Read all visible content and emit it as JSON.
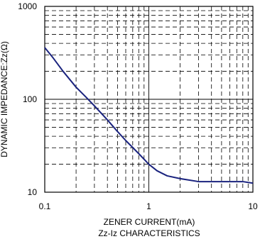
{
  "chart_data": {
    "type": "line",
    "title": "Zz-Iz CHARACTERISTICS",
    "xlabel": "ZENER CURRENT(mA)",
    "ylabel": "DYNAMIC IMPEDANCE:Zz(Ω)",
    "x_scale": "log",
    "y_scale": "log",
    "xlim": [
      0.1,
      10
    ],
    "ylim": [
      10,
      1000
    ],
    "x_tick_labels": [
      "0.1",
      "1",
      "10"
    ],
    "y_tick_labels": [
      "10",
      "100",
      "1000"
    ],
    "grid": true,
    "line_color": "#1a237e",
    "series": [
      {
        "x": [
          0.1,
          0.12,
          0.15,
          0.2,
          0.25,
          0.3,
          0.4,
          0.5,
          0.6,
          0.8,
          1.0,
          1.2,
          1.5,
          2.0,
          3.0,
          4.0,
          5.0,
          7.0,
          8.0,
          10.0
        ],
        "y": [
          360,
          280,
          200,
          135,
          105,
          85,
          60,
          45,
          36,
          26,
          20,
          17,
          15,
          14,
          13,
          13,
          13,
          13,
          13,
          12.5
        ]
      }
    ]
  }
}
